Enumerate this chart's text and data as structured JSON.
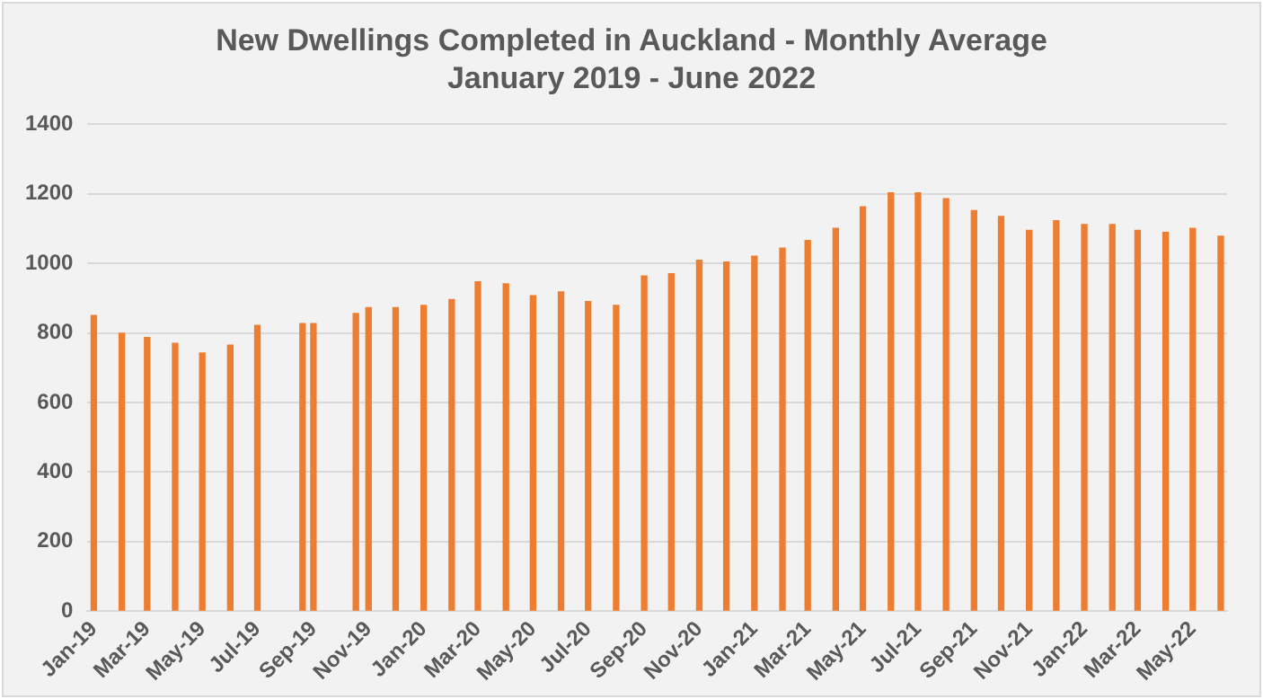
{
  "chart_data": {
    "type": "bar",
    "title": "New Dwellings Completed in Auckland - Monthly Average",
    "subtitle": "January 2019 - June 2022",
    "x": [
      "2019-01-01",
      "2019-02-01",
      "2019-03-01",
      "2019-04-01",
      "2019-05-01",
      "2019-06-01",
      "2019-07-01",
      "2019-08-20",
      "2019-09-01",
      "2019-10-18",
      "2019-11-01",
      "2019-12-01",
      "2020-01-01",
      "2020-02-01",
      "2020-03-01",
      "2020-04-01",
      "2020-05-01",
      "2020-06-01",
      "2020-07-01",
      "2020-08-01",
      "2020-09-01",
      "2020-10-01",
      "2020-11-01",
      "2020-12-01",
      "2021-01-01",
      "2021-02-01",
      "2021-03-01",
      "2021-04-01",
      "2021-05-01",
      "2021-06-01",
      "2021-07-01",
      "2021-08-01",
      "2021-09-01",
      "2021-10-01",
      "2021-11-01",
      "2021-12-01",
      "2022-01-01",
      "2022-02-01",
      "2022-03-01",
      "2022-04-01",
      "2022-05-01",
      "2022-06-01"
    ],
    "values": [
      850,
      799,
      787,
      770,
      742,
      765,
      822,
      827,
      827,
      856,
      873,
      873,
      879,
      896,
      947,
      941,
      907,
      918,
      890,
      879,
      964,
      970,
      1009,
      1004,
      1021,
      1044,
      1066,
      1101,
      1163,
      1203,
      1203,
      1186,
      1152,
      1135,
      1095,
      1123,
      1112,
      1112,
      1095,
      1089,
      1101,
      1078
    ],
    "color": "#ed7d31",
    "xlim": [
      "2018-12-25",
      "2022-06-08"
    ],
    "xticks": [
      {
        "value": "2019-01-01",
        "label": "Jan-19"
      },
      {
        "value": "2019-03-01",
        "label": "Mar-19"
      },
      {
        "value": "2019-05-01",
        "label": "May-19"
      },
      {
        "value": "2019-07-01",
        "label": "Jul-19"
      },
      {
        "value": "2019-09-01",
        "label": "Sep-19"
      },
      {
        "value": "2019-11-01",
        "label": "Nov-19"
      },
      {
        "value": "2020-01-01",
        "label": "Jan-20"
      },
      {
        "value": "2020-03-01",
        "label": "Mar-20"
      },
      {
        "value": "2020-05-01",
        "label": "May-20"
      },
      {
        "value": "2020-07-01",
        "label": "Jul-20"
      },
      {
        "value": "2020-09-01",
        "label": "Sep-20"
      },
      {
        "value": "2020-11-01",
        "label": "Nov-20"
      },
      {
        "value": "2021-01-01",
        "label": "Jan-21"
      },
      {
        "value": "2021-03-01",
        "label": "Mar-21"
      },
      {
        "value": "2021-05-01",
        "label": "May-21"
      },
      {
        "value": "2021-07-01",
        "label": "Jul-21"
      },
      {
        "value": "2021-09-01",
        "label": "Sep-21"
      },
      {
        "value": "2021-11-01",
        "label": "Nov-21"
      },
      {
        "value": "2022-01-01",
        "label": "Jan-22"
      },
      {
        "value": "2022-03-01",
        "label": "Mar-22"
      },
      {
        "value": "2022-05-01",
        "label": "May-22"
      }
    ],
    "ylim": [
      0,
      1400
    ],
    "yticks": [
      0,
      200,
      400,
      600,
      800,
      1000,
      1200,
      1400
    ],
    "grid": "y",
    "legend": false
  }
}
